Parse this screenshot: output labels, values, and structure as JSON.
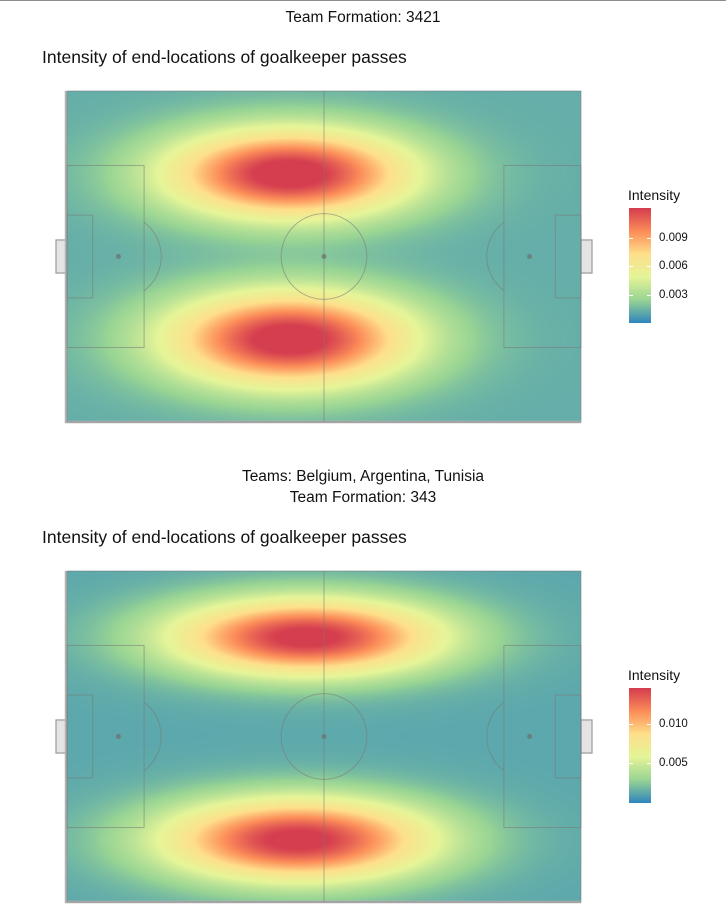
{
  "header": {
    "top_rule": true
  },
  "chart_data": [
    {
      "type": "heatmap",
      "suptitle_lines": [
        "Team Formation: 3421"
      ],
      "title": "Intensity of end-locations of goalkeeper passes",
      "xlabel": "",
      "ylabel": "",
      "pitch": {
        "length": 120,
        "width": 80
      },
      "colorscale": [
        "#3288bd",
        "#99d594",
        "#e6f598",
        "#fee08b",
        "#fc8d59",
        "#d53e4f"
      ],
      "legend": {
        "title": "Intensity",
        "placement": "right",
        "range": [
          0.0,
          0.0122
        ],
        "ticks": [
          {
            "value": 0.003,
            "label": "0.003"
          },
          {
            "value": 0.006,
            "label": "0.006"
          },
          {
            "value": 0.009,
            "label": "0.009"
          }
        ]
      },
      "hotspots": [
        {
          "x": 52,
          "y": 60,
          "sx": 20,
          "sy": 7.5,
          "peak": 0.012
        },
        {
          "x": 52,
          "y": 20,
          "sx": 20,
          "sy": 8.0,
          "peak": 0.012
        }
      ],
      "background_intensity": 0.0012
    },
    {
      "type": "heatmap",
      "suptitle_lines": [
        "Teams: Belgium, Argentina, Tunisia",
        "Team Formation: 343"
      ],
      "title": "Intensity of end-locations of goalkeeper passes",
      "xlabel": "",
      "ylabel": "",
      "pitch": {
        "length": 120,
        "width": 80
      },
      "colorscale": [
        "#3288bd",
        "#99d594",
        "#e6f598",
        "#fee08b",
        "#fc8d59",
        "#d53e4f"
      ],
      "legend": {
        "title": "Intensity",
        "placement": "right",
        "range": [
          0.0,
          0.0145
        ],
        "ticks": [
          {
            "value": 0.005,
            "label": "0.005"
          },
          {
            "value": 0.01,
            "label": "0.010"
          }
        ]
      },
      "hotspots": [
        {
          "x": 56,
          "y": 64,
          "sx": 22,
          "sy": 6.5,
          "peak": 0.014
        },
        {
          "x": 54,
          "y": 15,
          "sx": 22,
          "sy": 7.0,
          "peak": 0.014
        }
      ],
      "background_intensity": 0.0012
    }
  ]
}
